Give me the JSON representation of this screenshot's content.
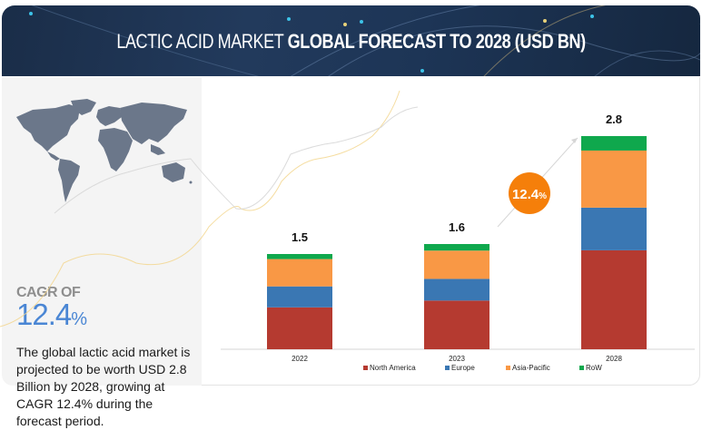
{
  "banner": {
    "title_part1": "LACTIC ACID MARKET ",
    "title_part2": "GLOBAL FORECAST TO 2028 (USD BN)"
  },
  "left_panel": {
    "cagr_label": "CAGR OF",
    "cagr_value": "12.4",
    "cagr_unit": "%",
    "description": "The global lactic acid market is projected to be worth USD 2.8 Billion by 2028, growing at CAGR 12.4% during the forecast period."
  },
  "cagr_bubble": {
    "value": "12.4",
    "unit": "%",
    "color": "#f57f0a"
  },
  "colors": {
    "North America": "#b53a30",
    "Europe": "#3a77b3",
    "Asia-Pacific": "#f99845",
    "RoW": "#0fa84d",
    "banner_bg": "#1d3556",
    "cagr_accent": "#4a86d4"
  },
  "chart_data": {
    "type": "bar",
    "stacked": true,
    "title": "LACTIC ACID MARKET GLOBAL FORECAST TO 2028 (USD BN)",
    "xlabel": "",
    "ylabel": "",
    "categories": [
      "2022",
      "2023",
      "2028"
    ],
    "totals": [
      1.5,
      1.6,
      2.8
    ],
    "total_labels": [
      "1.5",
      "1.6",
      "2.8"
    ],
    "series": [
      {
        "name": "North America",
        "values": [
          0.66,
          0.74,
          1.3
        ]
      },
      {
        "name": "Europe",
        "values": [
          0.33,
          0.33,
          0.56
        ]
      },
      {
        "name": "Asia-Pacific",
        "values": [
          0.43,
          0.43,
          0.75
        ]
      },
      {
        "name": "RoW",
        "values": [
          0.08,
          0.1,
          0.19
        ]
      }
    ],
    "legend": [
      "North America",
      "Europe",
      "Asia-Pacific",
      "RoW"
    ],
    "legend_position": "bottom",
    "grid": false,
    "annotation": "12.4%"
  }
}
